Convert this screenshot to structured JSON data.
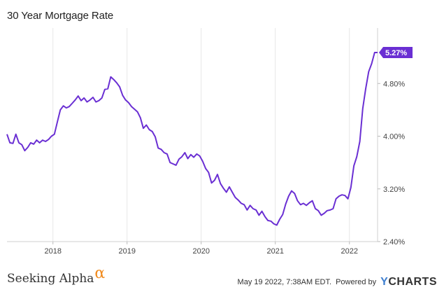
{
  "chart_data": {
    "type": "line",
    "title": "30 Year Mortgage Rate",
    "xlabel": "",
    "ylabel": "",
    "ylim": [
      2.4,
      5.6
    ],
    "xlim": [
      2017.38,
      2022.38
    ],
    "yticks": [
      2.4,
      3.2,
      4.0,
      4.8
    ],
    "ytick_labels": [
      "2.40%",
      "3.20%",
      "4.00%",
      "4.80%"
    ],
    "xticks": [
      2018,
      2019,
      2020,
      2021,
      2022
    ],
    "xtick_labels": [
      "2018",
      "2019",
      "2020",
      "2021",
      "2022"
    ],
    "grid": "vertical",
    "last_value_label": "5.27%",
    "line_color": "#6a2fd3",
    "series": [
      {
        "x": [
          2017.38,
          2017.42,
          2017.46,
          2017.5,
          2017.54,
          2017.58,
          2017.62,
          2017.66,
          2017.7,
          2017.74,
          2017.78,
          2017.82,
          2017.86,
          2017.9,
          2017.94,
          2017.98,
          2018.02,
          2018.06,
          2018.1,
          2018.14,
          2018.18,
          2018.22,
          2018.26,
          2018.3,
          2018.34,
          2018.38,
          2018.42,
          2018.46,
          2018.5,
          2018.54,
          2018.58,
          2018.62,
          2018.66,
          2018.7,
          2018.74,
          2018.78,
          2018.82,
          2018.86,
          2018.9,
          2018.94,
          2018.98,
          2019.02,
          2019.06,
          2019.1,
          2019.14,
          2019.18,
          2019.22,
          2019.26,
          2019.3,
          2019.34,
          2019.38,
          2019.42,
          2019.46,
          2019.5,
          2019.54,
          2019.58,
          2019.62,
          2019.66,
          2019.7,
          2019.74,
          2019.78,
          2019.82,
          2019.86,
          2019.9,
          2019.94,
          2019.98,
          2020.02,
          2020.06,
          2020.1,
          2020.14,
          2020.18,
          2020.22,
          2020.26,
          2020.3,
          2020.34,
          2020.38,
          2020.42,
          2020.46,
          2020.5,
          2020.54,
          2020.58,
          2020.62,
          2020.66,
          2020.7,
          2020.74,
          2020.78,
          2020.82,
          2020.86,
          2020.9,
          2020.94,
          2020.98,
          2021.02,
          2021.06,
          2021.1,
          2021.14,
          2021.18,
          2021.22,
          2021.26,
          2021.3,
          2021.34,
          2021.38,
          2021.42,
          2021.46,
          2021.5,
          2021.54,
          2021.58,
          2021.62,
          2021.66,
          2021.7,
          2021.74,
          2021.78,
          2021.82,
          2021.86,
          2021.9,
          2021.94,
          2021.98,
          2022.02,
          2022.06,
          2022.1,
          2022.14,
          2022.18,
          2022.22,
          2022.26,
          2022.3,
          2022.34,
          2022.38
        ],
        "y": [
          4.03,
          3.9,
          3.89,
          4.03,
          3.9,
          3.87,
          3.78,
          3.83,
          3.9,
          3.88,
          3.94,
          3.9,
          3.94,
          3.92,
          3.95,
          4.0,
          4.03,
          4.22,
          4.4,
          4.46,
          4.43,
          4.45,
          4.5,
          4.55,
          4.61,
          4.54,
          4.58,
          4.52,
          4.55,
          4.59,
          4.52,
          4.54,
          4.58,
          4.71,
          4.72,
          4.9,
          4.86,
          4.81,
          4.75,
          4.62,
          4.55,
          4.51,
          4.45,
          4.41,
          4.37,
          4.28,
          4.12,
          4.17,
          4.1,
          4.07,
          3.99,
          3.82,
          3.8,
          3.75,
          3.73,
          3.6,
          3.58,
          3.56,
          3.65,
          3.69,
          3.75,
          3.66,
          3.72,
          3.68,
          3.73,
          3.7,
          3.62,
          3.51,
          3.45,
          3.29,
          3.33,
          3.42,
          3.28,
          3.21,
          3.15,
          3.23,
          3.15,
          3.07,
          3.03,
          2.98,
          2.96,
          2.88,
          2.95,
          2.9,
          2.88,
          2.8,
          2.86,
          2.78,
          2.72,
          2.71,
          2.67,
          2.65,
          2.74,
          2.81,
          2.97,
          3.09,
          3.17,
          3.13,
          3.02,
          2.96,
          2.98,
          2.95,
          2.99,
          3.02,
          2.9,
          2.87,
          2.8,
          2.83,
          2.87,
          2.88,
          2.9,
          3.05,
          3.09,
          3.11,
          3.1,
          3.05,
          3.22,
          3.55,
          3.69,
          3.92,
          4.42,
          4.72,
          4.98,
          5.1,
          5.27,
          5.27
        ]
      }
    ]
  },
  "footer": {
    "brand": "Seeking Alpha",
    "alpha_symbol": "α",
    "timestamp": "May 19 2022, 7:38AM EDT.",
    "powered_by": "Powered by",
    "ycharts_y": "Y",
    "ycharts_rest": "CHARTS"
  }
}
